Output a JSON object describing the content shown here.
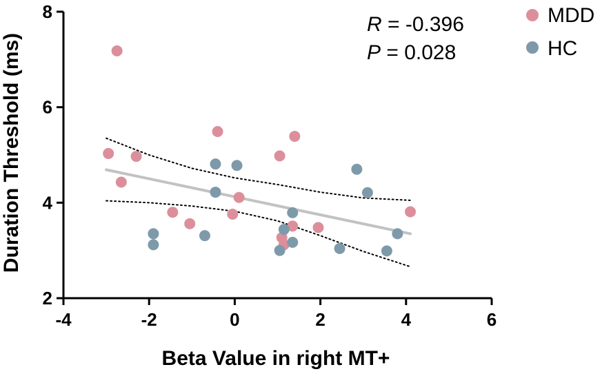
{
  "chart_data": {
    "type": "scatter",
    "xlabel": "Beta Value in right MT+",
    "ylabel": "Duration Threshold (ms)",
    "xlim": [
      -4,
      6
    ],
    "ylim": [
      2,
      8
    ],
    "xticks": [
      -4,
      -2,
      0,
      2,
      4,
      6
    ],
    "yticks": [
      2,
      4,
      6,
      8
    ],
    "xtick_labels": [
      "-4",
      "-2",
      "0",
      "2",
      "4",
      "6"
    ],
    "ytick_labels": [
      "2",
      "4",
      "6",
      "8"
    ],
    "series": [
      {
        "name": "MDD",
        "color": "#dc8f9b",
        "points": [
          [
            -2.95,
            5.03
          ],
          [
            -2.75,
            7.18
          ],
          [
            -2.3,
            4.97
          ],
          [
            -2.65,
            4.43
          ],
          [
            -1.45,
            3.8
          ],
          [
            -1.05,
            3.56
          ],
          [
            -0.4,
            5.49
          ],
          [
            -0.05,
            3.76
          ],
          [
            0.1,
            4.11
          ],
          [
            1.05,
            4.98
          ],
          [
            1.4,
            5.39
          ],
          [
            1.1,
            3.27
          ],
          [
            1.15,
            3.12
          ],
          [
            1.35,
            3.51
          ],
          [
            1.95,
            3.48
          ],
          [
            4.1,
            3.81
          ]
        ]
      },
      {
        "name": "HC",
        "color": "#7e9aaa",
        "points": [
          [
            -1.9,
            3.35
          ],
          [
            -1.9,
            3.12
          ],
          [
            -0.7,
            3.31
          ],
          [
            -0.45,
            4.81
          ],
          [
            -0.45,
            4.22
          ],
          [
            0.05,
            4.78
          ],
          [
            1.05,
            3.0
          ],
          [
            1.15,
            3.44
          ],
          [
            1.35,
            3.79
          ],
          [
            1.35,
            3.17
          ],
          [
            2.45,
            3.04
          ],
          [
            2.85,
            4.7
          ],
          [
            3.1,
            4.21
          ],
          [
            3.55,
            2.99
          ],
          [
            3.8,
            3.35
          ]
        ]
      }
    ],
    "regression": {
      "color": "#c2c2c2",
      "x": [
        -3.0,
        4.1
      ],
      "y": [
        4.69,
        3.35
      ]
    },
    "confidence_band": {
      "x": [
        -3.0,
        -2.0,
        -1.0,
        0.0,
        1.0,
        2.0,
        3.0,
        4.1
      ],
      "upper": [
        5.35,
        5.0,
        4.72,
        4.52,
        4.38,
        4.22,
        4.1,
        4.05
      ],
      "lower": [
        4.04,
        4.0,
        3.93,
        3.82,
        3.62,
        3.31,
        2.98,
        2.66
      ]
    },
    "annotations": {
      "r_label": "R",
      "r_value": " = -0.396",
      "p_label": "P",
      "p_value": " = 0.028"
    },
    "legend": {
      "placement": "top-right",
      "entries": [
        "MDD",
        "HC"
      ]
    }
  }
}
